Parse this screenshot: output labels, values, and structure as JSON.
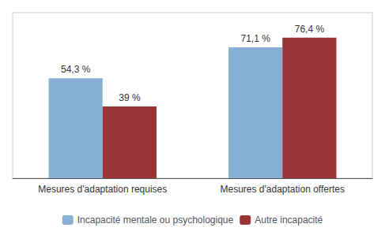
{
  "chart_data": {
    "type": "bar",
    "categories": [
      "Mesures d'adaptation requises",
      "Mesures d'adaptation offertes"
    ],
    "series": [
      {
        "name": "Incapacité mentale ou psychologique",
        "color": "#88afd4",
        "values": [
          54.3,
          71.1
        ],
        "value_labels": [
          "54,3 %",
          "71,1 %"
        ]
      },
      {
        "name": "Autre incapacité",
        "color": "#9b3535",
        "values": [
          39.0,
          76.4
        ],
        "value_labels": [
          "39 %",
          "76,4 %"
        ]
      }
    ],
    "ylim": [
      0,
      90
    ],
    "grid": false,
    "legend": "bottom",
    "data_labels": true,
    "tick_labels": "x"
  }
}
